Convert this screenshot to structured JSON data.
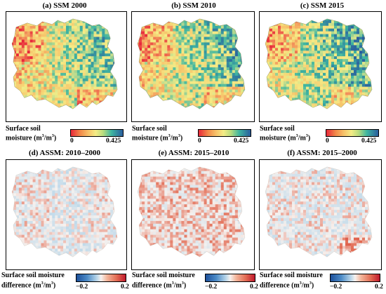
{
  "panels": [
    {
      "id": "a",
      "title": "(a) SSM 2000",
      "type": "ssm"
    },
    {
      "id": "b",
      "title": "(b) SSM 2010",
      "type": "ssm"
    },
    {
      "id": "c",
      "title": "(c) SSM 2015",
      "type": "ssm"
    },
    {
      "id": "d",
      "title": "(d) ASSM: 2010–2000",
      "type": "diff"
    },
    {
      "id": "e",
      "title": "(e) ASSM: 2015–2010",
      "type": "diff"
    },
    {
      "id": "f",
      "title": "(f) ASSM: 2015–2000",
      "type": "diff"
    }
  ],
  "legends": {
    "ssm": {
      "line1": "Surface soil",
      "line2_prefix": "moisture (m",
      "sup1": "3",
      "mid": "/m",
      "sup2": "3",
      "suffix": ")",
      "min_label": "0",
      "max_label": "0.425",
      "colors": [
        "#e8283a",
        "#f7c36a",
        "#f4ec86",
        "#3fb6a0",
        "#2a5d9e"
      ]
    },
    "diff": {
      "line1": "Surface soil moisture",
      "line2_prefix": "difference (m",
      "sup1": "3",
      "mid": "/m",
      "sup2": "3",
      "suffix": ")",
      "min_label": "−0.2",
      "max_label": "0.2",
      "colors": [
        "#1c4f9a",
        "#bcd8ea",
        "#f6f1ee",
        "#e26a52",
        "#c0192d"
      ]
    }
  }
}
